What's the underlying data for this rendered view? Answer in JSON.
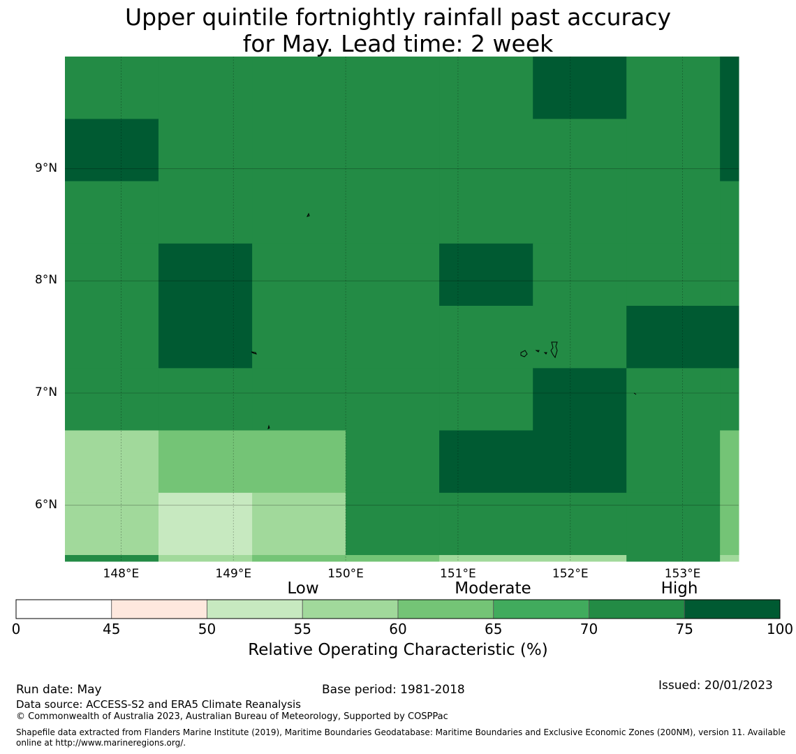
{
  "title": {
    "line1": "Upper quintile fortnightly rainfall past accuracy",
    "line2": "for May. Lead time: 2 week"
  },
  "map": {
    "lon_range": [
      147.5,
      153.5
    ],
    "lat_range": [
      5.5,
      10.0
    ],
    "cell_size_deg": 0.833,
    "cell_lon_edges": [
      147.5,
      148.333,
      149.167,
      150.0,
      150.833,
      151.667,
      152.5,
      153.333,
      153.5
    ],
    "cell_lat_edges": [
      10.0,
      9.444,
      8.889,
      8.333,
      7.778,
      7.222,
      6.667,
      6.111,
      5.556,
      5.5
    ],
    "cell_roc_values": [
      [
        72,
        74,
        74,
        74,
        74,
        77,
        74,
        77
      ],
      [
        77,
        74,
        74,
        74,
        74,
        74,
        74,
        77
      ],
      [
        74,
        74,
        74,
        74,
        74,
        74,
        74,
        74
      ],
      [
        74,
        77,
        74,
        74,
        77,
        74,
        72,
        72
      ],
      [
        74,
        77,
        74,
        74,
        72,
        74,
        77,
        77
      ],
      [
        72,
        72,
        72,
        72,
        74,
        77,
        74,
        74
      ],
      [
        57,
        62,
        62,
        72,
        77,
        77,
        72,
        62
      ],
      [
        57,
        52,
        57,
        72,
        74,
        72,
        72,
        62
      ],
      [
        72,
        57,
        62,
        62,
        57,
        57,
        72,
        57
      ]
    ],
    "lat_ticks": [
      {
        "value": 9,
        "label": "9°N"
      },
      {
        "value": 8,
        "label": "8°N"
      },
      {
        "value": 7,
        "label": "7°N"
      },
      {
        "value": 6,
        "label": "6°N"
      }
    ],
    "lon_ticks": [
      {
        "value": 148,
        "label": "148°E"
      },
      {
        "value": 149,
        "label": "149°E"
      },
      {
        "value": 150,
        "label": "150°E"
      },
      {
        "value": 151,
        "label": "151°E"
      },
      {
        "value": 152,
        "label": "152°E"
      },
      {
        "value": 153,
        "label": "153°E"
      }
    ]
  },
  "colorbar": {
    "bins": [
      {
        "from": 0,
        "to": 45,
        "color": "#ffffff"
      },
      {
        "from": 45,
        "to": 50,
        "color": "#fee8de"
      },
      {
        "from": 50,
        "to": 55,
        "color": "#c7e9c0"
      },
      {
        "from": 55,
        "to": 60,
        "color": "#a1d99b"
      },
      {
        "from": 60,
        "to": 65,
        "color": "#74c476"
      },
      {
        "from": 65,
        "to": 70,
        "color": "#41ab5d"
      },
      {
        "from": 70,
        "to": 75,
        "color": "#238b45"
      },
      {
        "from": 75,
        "to": 100,
        "color": "#005a32"
      }
    ],
    "tick_labels": [
      "0",
      "45",
      "50",
      "55",
      "60",
      "65",
      "70",
      "75",
      "100"
    ],
    "categories": {
      "low": "Low",
      "moderate": "Moderate",
      "high": "High"
    },
    "label": "Relative Operating Characteristic (%)"
  },
  "footer": {
    "run_date": "Run date: May",
    "base_period": "Base period: 1981-2018",
    "issued": "Issued: 20/01/2023",
    "data_source": "Data source: ACCESS-S2 and ERA5 Climate Reanalysis",
    "copyright": "© Commonwealth of Australia 2023, Australian Bureau of Meteorology, Supported by COSPPac",
    "shapefile": "Shapefile data extracted from Flanders Marine Institute (2019), Maritime Boundaries Geodatabase: Maritime Boundaries and Exclusive Economic Zones (200NM), version 11. Available online at http://www.marineregions.org/."
  }
}
